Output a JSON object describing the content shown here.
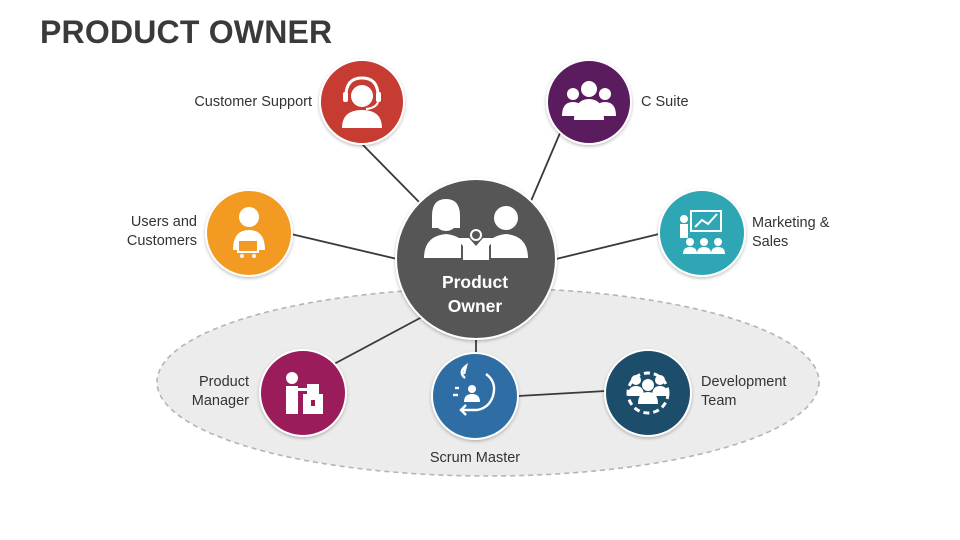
{
  "title": "PRODUCT OWNER",
  "center": {
    "label": "Product\nOwner",
    "color": "#575757"
  },
  "nodes": {
    "customer_support": {
      "label": "Customer Support",
      "color": "#c63a31",
      "icon": "headset-agent-icon"
    },
    "c_suite": {
      "label": "C Suite",
      "color": "#5a1a5e",
      "icon": "executive-team-icon"
    },
    "users_customers": {
      "label": "Users and\nCustomers",
      "color": "#f29a24",
      "icon": "user-cart-icon"
    },
    "marketing_sales": {
      "label": "Marketing &\nSales",
      "color": "#2ea6b3",
      "icon": "presentation-audience-icon"
    },
    "product_manager": {
      "label": "Product\nManager",
      "color": "#9b1b5a",
      "icon": "manager-boxes-icon"
    },
    "scrum_master": {
      "label": "Scrum Master",
      "color": "#2d6ea5",
      "icon": "scrum-cycle-icon"
    },
    "development_team": {
      "label": "Development\nTeam",
      "color": "#1f4e6b",
      "icon": "dev-team-gear-icon"
    }
  }
}
